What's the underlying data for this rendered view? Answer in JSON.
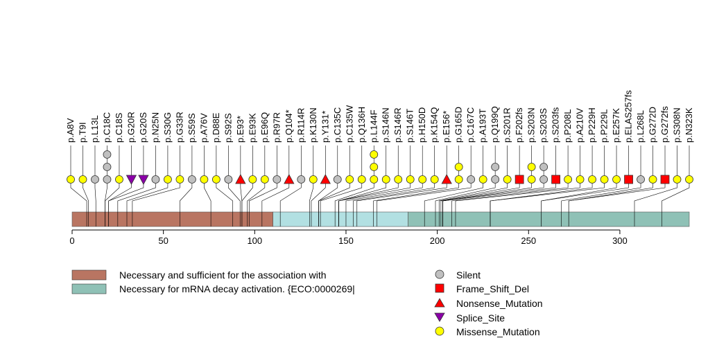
{
  "chart_data": {
    "type": "lollipop",
    "x_axis": {
      "range": [
        0,
        338
      ],
      "ticks": [
        0,
        50,
        100,
        150,
        200,
        250,
        300
      ]
    },
    "domains": [
      {
        "name": "Necessary and sufficient for the association with",
        "start": 0,
        "end": 110,
        "color": "#b97562"
      },
      {
        "name": "",
        "start": 110,
        "end": 184,
        "color": "#b2e0e2"
      },
      {
        "name": "Necessary for mRNA decay activation. {ECO:0000269|",
        "start": 184,
        "end": 338,
        "color": "#8fc1b6"
      }
    ],
    "mutation_types": {
      "Silent": {
        "shape": "circle",
        "color": "#c0c0c0"
      },
      "Frame_Shift_Del": {
        "shape": "square",
        "color": "#ff0000"
      },
      "Nonsense_Mutation": {
        "shape": "triangle-up",
        "color": "#ff0000"
      },
      "Splice_Site": {
        "shape": "triangle-down",
        "color": "#8b00a8"
      },
      "Missense_Mutation": {
        "shape": "circle",
        "color": "#ffff00"
      }
    },
    "legend_left": [
      "Necessary and sufficient for the association with",
      "Necessary for mRNA decay activation. {ECO:0000269|"
    ],
    "legend_right": [
      "Silent",
      "Frame_Shift_Del",
      "Nonsense_Mutation",
      "Splice_Site",
      "Missense_Mutation"
    ],
    "mutations": [
      {
        "label": "p.A8V",
        "pos": 8,
        "markers": [
          "Missense_Mutation"
        ]
      },
      {
        "label": "p.T9I",
        "pos": 9,
        "markers": [
          "Missense_Mutation"
        ]
      },
      {
        "label": "p.L13L",
        "pos": 13,
        "markers": [
          "Silent"
        ]
      },
      {
        "label": "p.C18C",
        "pos": 18,
        "markers": [
          "Silent",
          "Silent",
          "Silent"
        ]
      },
      {
        "label": "p.C18S",
        "pos": 18,
        "markers": [
          "Missense_Mutation"
        ]
      },
      {
        "label": "p.G20R",
        "pos": 20,
        "markers": [
          "Splice_Site"
        ]
      },
      {
        "label": "p.G20S",
        "pos": 20,
        "markers": [
          "Splice_Site"
        ]
      },
      {
        "label": "p.N25N",
        "pos": 25,
        "markers": [
          "Silent"
        ]
      },
      {
        "label": "p.S30G",
        "pos": 30,
        "markers": [
          "Missense_Mutation"
        ]
      },
      {
        "label": "p.G33R",
        "pos": 33,
        "markers": [
          "Missense_Mutation"
        ]
      },
      {
        "label": "p.S59S",
        "pos": 59,
        "markers": [
          "Silent"
        ]
      },
      {
        "label": "p.A76V",
        "pos": 76,
        "markers": [
          "Missense_Mutation"
        ]
      },
      {
        "label": "p.D88E",
        "pos": 88,
        "markers": [
          "Missense_Mutation"
        ]
      },
      {
        "label": "p.S92S",
        "pos": 92,
        "markers": [
          "Silent"
        ]
      },
      {
        "label": "p.E93*",
        "pos": 93,
        "markers": [
          "Nonsense_Mutation"
        ]
      },
      {
        "label": "p.E93K",
        "pos": 93,
        "markers": [
          "Missense_Mutation"
        ]
      },
      {
        "label": "p.E96Q",
        "pos": 96,
        "markers": [
          "Missense_Mutation"
        ]
      },
      {
        "label": "p.R97R",
        "pos": 97,
        "markers": [
          "Silent"
        ]
      },
      {
        "label": "p.Q104*",
        "pos": 104,
        "markers": [
          "Nonsense_Mutation"
        ]
      },
      {
        "label": "p.R114R",
        "pos": 114,
        "markers": [
          "Silent"
        ]
      },
      {
        "label": "p.K130N",
        "pos": 130,
        "markers": [
          "Missense_Mutation"
        ]
      },
      {
        "label": "p.Y131*",
        "pos": 131,
        "markers": [
          "Nonsense_Mutation"
        ]
      },
      {
        "label": "p.C135C",
        "pos": 135,
        "markers": [
          "Silent"
        ]
      },
      {
        "label": "p.C135W",
        "pos": 135,
        "markers": [
          "Missense_Mutation"
        ]
      },
      {
        "label": "p.Q136H",
        "pos": 136,
        "markers": [
          "Missense_Mutation"
        ]
      },
      {
        "label": "p.L144F",
        "pos": 144,
        "markers": [
          "Missense_Mutation",
          "Missense_Mutation",
          "Missense_Mutation"
        ]
      },
      {
        "label": "p.S146N",
        "pos": 146,
        "markers": [
          "Missense_Mutation"
        ]
      },
      {
        "label": "p.S146R",
        "pos": 146,
        "markers": [
          "Missense_Mutation"
        ]
      },
      {
        "label": "p.S146T",
        "pos": 146,
        "markers": [
          "Missense_Mutation"
        ]
      },
      {
        "label": "p.H150D",
        "pos": 150,
        "markers": [
          "Missense_Mutation"
        ]
      },
      {
        "label": "p.K154Q",
        "pos": 154,
        "markers": [
          "Missense_Mutation"
        ]
      },
      {
        "label": "p.E156*",
        "pos": 156,
        "markers": [
          "Nonsense_Mutation"
        ]
      },
      {
        "label": "p.G165D",
        "pos": 165,
        "markers": [
          "Missense_Mutation",
          "Missense_Mutation"
        ]
      },
      {
        "label": "p.C167C",
        "pos": 167,
        "markers": [
          "Silent"
        ]
      },
      {
        "label": "p.A193T",
        "pos": 193,
        "markers": [
          "Missense_Mutation"
        ]
      },
      {
        "label": "p.Q199Q",
        "pos": 199,
        "markers": [
          "Silent",
          "Silent"
        ]
      },
      {
        "label": "p.S201R",
        "pos": 201,
        "markers": [
          "Missense_Mutation"
        ]
      },
      {
        "label": "p.F202fs",
        "pos": 202,
        "markers": [
          "Frame_Shift_Del"
        ]
      },
      {
        "label": "p.S203N",
        "pos": 203,
        "markers": [
          "Missense_Mutation",
          "Missense_Mutation"
        ]
      },
      {
        "label": "p.S203S",
        "pos": 203,
        "markers": [
          "Silent",
          "Silent"
        ]
      },
      {
        "label": "p.S203fs",
        "pos": 203,
        "markers": [
          "Frame_Shift_Del"
        ]
      },
      {
        "label": "p.P208L",
        "pos": 208,
        "markers": [
          "Missense_Mutation"
        ]
      },
      {
        "label": "p.A210V",
        "pos": 210,
        "markers": [
          "Missense_Mutation"
        ]
      },
      {
        "label": "p.P229H",
        "pos": 229,
        "markers": [
          "Missense_Mutation"
        ]
      },
      {
        "label": "p.P229L",
        "pos": 229,
        "markers": [
          "Missense_Mutation"
        ]
      },
      {
        "label": "p.E257K",
        "pos": 257,
        "markers": [
          "Missense_Mutation"
        ]
      },
      {
        "label": "p.ELAS257fs",
        "pos": 257,
        "markers": [
          "Frame_Shift_Del"
        ]
      },
      {
        "label": "p.L268L",
        "pos": 268,
        "markers": [
          "Silent"
        ]
      },
      {
        "label": "p.G272D",
        "pos": 272,
        "markers": [
          "Missense_Mutation"
        ]
      },
      {
        "label": "p.G272fs",
        "pos": 272,
        "markers": [
          "Frame_Shift_Del"
        ]
      },
      {
        "label": "p.S308N",
        "pos": 308,
        "markers": [
          "Missense_Mutation"
        ]
      },
      {
        "label": "p.N323K",
        "pos": 323,
        "markers": [
          "Missense_Mutation"
        ]
      }
    ]
  }
}
